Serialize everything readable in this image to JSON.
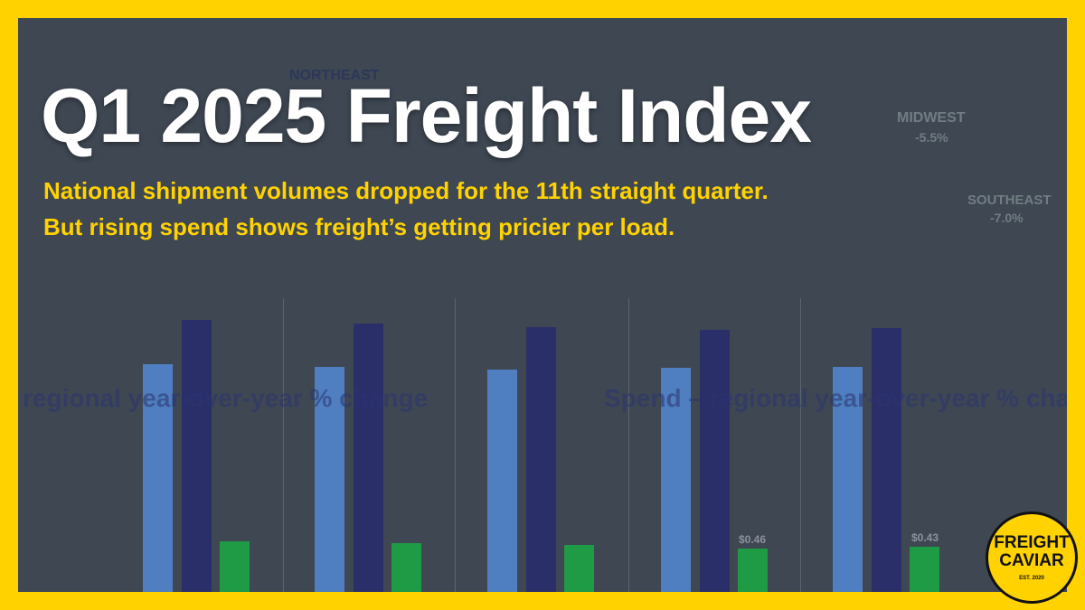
{
  "header": {
    "title": "Q1 2025 Freight Index",
    "subtitle_lines": [
      "National shipment volumes dropped for the 11th straight quarter.",
      "But rising spend shows freight’s getting pricier per load."
    ]
  },
  "background": {
    "labels": [
      "regional year-over-year % change",
      "Spend – regional year-over-year % cha",
      "NORTHEAST",
      "MIDWEST",
      "-5.5%",
      "SOUTHEAST",
      "-7.0%",
      "$0.46",
      "$0.43"
    ]
  },
  "logo": {
    "name_lines": [
      "FREIGHT",
      "CAVIAR"
    ],
    "est": "EST. 2020"
  }
}
